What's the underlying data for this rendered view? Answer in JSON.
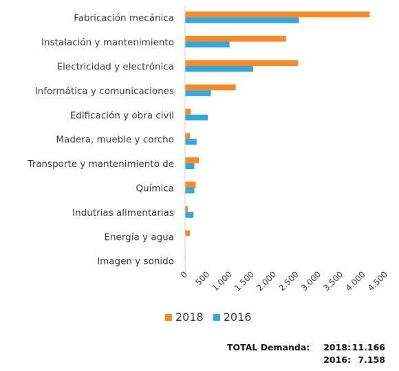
{
  "chart_data": {
    "type": "bar",
    "orientation": "horizontal",
    "categories": [
      "Fabricación mecánica",
      "Instalación y mantenimiento",
      "Electricidad y electrónica",
      "Informática y comunicaciones",
      "Edificación y obra civil",
      "Madera, mueble y corcho",
      "Transporte y mantenimiento de",
      "Química",
      "Indutrias alimentarias",
      "Energía y agua",
      "Imagen y sonido"
    ],
    "series": [
      {
        "name": "2018",
        "color": "#f58a2b",
        "values": [
          4150,
          2270,
          2540,
          1140,
          130,
          110,
          310,
          240,
          60,
          110,
          10
        ]
      },
      {
        "name": "2016",
        "color": "#3aa6d6",
        "values": [
          2560,
          1000,
          1530,
          580,
          510,
          260,
          210,
          210,
          190,
          0,
          0
        ]
      }
    ],
    "xlim": [
      0,
      4500
    ],
    "xticks": [
      "0",
      "500",
      "1.000",
      "1.500",
      "2.000",
      "2.500",
      "3.000",
      "3.500",
      "4.000",
      "4.500"
    ],
    "xtick_values": [
      0,
      500,
      1000,
      1500,
      2000,
      2500,
      3000,
      3500,
      4000,
      4500
    ],
    "grid": false,
    "legend": "bottom"
  },
  "totals": {
    "label": "TOTAL Demanda:",
    "rows": [
      {
        "year": "2018:",
        "value": "11.166"
      },
      {
        "year": "2016:",
        "value": "7.158"
      }
    ]
  }
}
